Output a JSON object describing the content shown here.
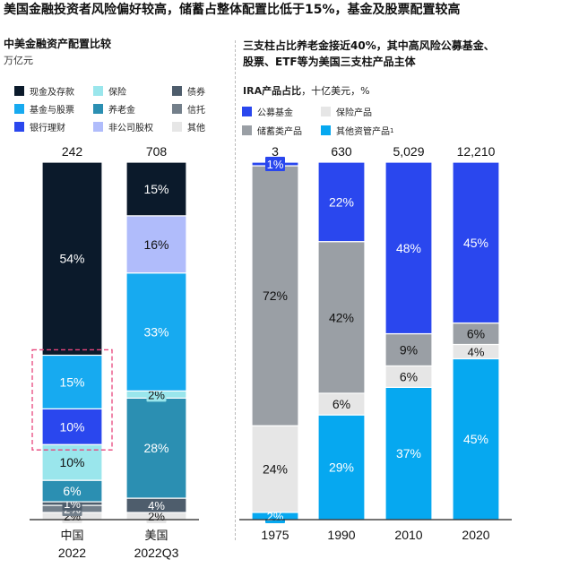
{
  "title": "美国金融投资者风险偏好较高，储蓄占整体配置比低于15%，基金及股票配置较高",
  "left": {
    "subtitle": "中美金融资产配置比较",
    "unit": "万亿元",
    "legend": [
      {
        "label": "现金及存款",
        "color": "#0b1a2b"
      },
      {
        "label": "保险",
        "color": "#9ae6ec"
      },
      {
        "label": "债券",
        "color": "#4e5d6c"
      },
      {
        "label": "基金与股票",
        "color": "#17aaf0"
      },
      {
        "label": "养老金",
        "color": "#2b8fb2"
      },
      {
        "label": "信托",
        "color": "#737f8a"
      },
      {
        "label": "银行理财",
        "color": "#2a47ee"
      },
      {
        "label": "非公司股权",
        "color": "#b0bcfb"
      },
      {
        "label": "其他",
        "color": "#e6e6e6"
      }
    ]
  },
  "right": {
    "subtitle_line1": "三支柱占比养老金接近40%，其中高风险公募基金、",
    "subtitle_line2": "股票、ETF等为美国三支柱产品主体",
    "unit_bold": "IRA产品占比",
    "unit_rest": "，十亿美元，%",
    "legend": [
      {
        "label": "公募基金",
        "color": "#2a47ee"
      },
      {
        "label": "保险产品",
        "color": "#e6e6e6"
      },
      {
        "label": "储蓄类产品",
        "color": "#9a9fa5"
      },
      {
        "label": "其他资管产品",
        "color": "#06a8f0",
        "sup": "1"
      }
    ]
  },
  "chart_data": [
    {
      "type": "bar",
      "stacked": true,
      "normalized": true,
      "title": "中美金融资产配置比较",
      "unit": "万亿元",
      "categories": [
        "中国 2022",
        "美国 2022Q3"
      ],
      "category_lines": [
        [
          "中国",
          "2022"
        ],
        [
          "美国",
          "2022Q3"
        ]
      ],
      "totals": [
        "242",
        "708"
      ],
      "series_order_bottom_to_top": [
        "其他",
        "信托",
        "债券",
        "养老金",
        "保险",
        "银行理财",
        "基金与股票",
        "非公司股权",
        "现金及存款"
      ],
      "series": [
        {
          "name": "其他",
          "color": "#e6e6e6",
          "values": [
            2,
            2
          ],
          "labels": [
            "2%",
            "2%"
          ]
        },
        {
          "name": "信托",
          "color": "#737f8a",
          "values": [
            2,
            0
          ],
          "labels": [
            "2%",
            ""
          ]
        },
        {
          "name": "债券",
          "color": "#4e5d6c",
          "values": [
            1,
            4
          ],
          "labels": [
            "1%",
            "4%"
          ]
        },
        {
          "name": "养老金",
          "color": "#2b8fb2",
          "values": [
            6,
            28
          ],
          "labels": [
            "6%",
            "28%"
          ]
        },
        {
          "name": "保险",
          "color": "#9ae6ec",
          "values": [
            10,
            2
          ],
          "labels": [
            "10%",
            "2%"
          ]
        },
        {
          "name": "银行理财",
          "color": "#2a47ee",
          "values": [
            10,
            0
          ],
          "labels": [
            "10%",
            ""
          ]
        },
        {
          "name": "基金与股票",
          "color": "#17aaf0",
          "values": [
            15,
            33
          ],
          "labels": [
            "15%",
            "33%"
          ]
        },
        {
          "name": "非公司股权",
          "color": "#b0bcfb",
          "values": [
            0,
            16
          ],
          "labels": [
            "",
            "16%"
          ]
        },
        {
          "name": "现金及存款",
          "color": "#0b1a2b",
          "values": [
            54,
            15
          ],
          "labels": [
            "54%",
            "15%"
          ]
        }
      ],
      "annotation": "dashed pink box highlighting 基金与股票 and 银行理财 in 中国 2022"
    },
    {
      "type": "bar",
      "stacked": true,
      "normalized": true,
      "title": "IRA产品占比",
      "unit": "十亿美元，%",
      "categories": [
        "1975",
        "1990",
        "2010",
        "2020"
      ],
      "totals": [
        "3",
        "630",
        "5,029",
        "12,210"
      ],
      "series": [
        {
          "name": "其他资管产品",
          "color": "#06a8f0",
          "values": [
            2,
            29,
            37,
            45
          ],
          "labels": [
            "2%",
            "29%",
            "37%",
            "45%"
          ]
        },
        {
          "name": "保险产品",
          "color": "#e6e6e6",
          "values": [
            24,
            6,
            6,
            4
          ],
          "labels": [
            "24%",
            "6%",
            "6%",
            "4%"
          ]
        },
        {
          "name": "储蓄类产品",
          "color": "#9a9fa5",
          "values": [
            72,
            42,
            9,
            6
          ],
          "labels": [
            "72%",
            "42%",
            "9%",
            "6%"
          ]
        },
        {
          "name": "公募基金",
          "color": "#2a47ee",
          "values": [
            1,
            22,
            48,
            45
          ],
          "labels": [
            "1%",
            "22%",
            "48%",
            "45%"
          ]
        }
      ]
    }
  ]
}
